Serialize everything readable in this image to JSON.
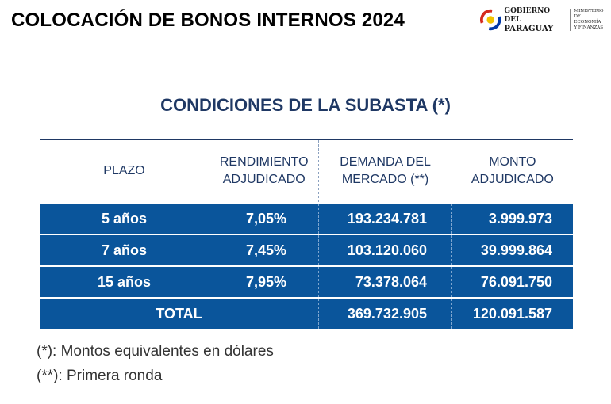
{
  "header": {
    "title": "COLOCACIÓN DE BONOS INTERNOS 2024",
    "logo": {
      "gov_line1": "GOBIERNO DEL",
      "gov_line2": "PARAGUAY",
      "ministry": "MINISTERIO\nDE ECONOMÍA\nY FINANZAS",
      "colors": {
        "red": "#d52b1e",
        "blue": "#0038a8"
      }
    }
  },
  "subtitle": "CONDICIONES DE LA SUBASTA (*)",
  "table": {
    "columns": [
      "PLAZO",
      "RENDIMIENTO ADJUDICADO",
      "DEMANDA DEL MERCADO (**)",
      "MONTO ADJUDICADO"
    ],
    "rows": [
      {
        "plazo": "5 años",
        "rendimiento": "7,05%",
        "demanda": "193.234.781",
        "monto": "3.999.973"
      },
      {
        "plazo": "7 años",
        "rendimiento": "7,45%",
        "demanda": "103.120.060",
        "monto": "39.999.864"
      },
      {
        "plazo": "15 años",
        "rendimiento": "7,95%",
        "demanda": "73.378.064",
        "monto": "76.091.750"
      }
    ],
    "total": {
      "label": "TOTAL",
      "demanda": "369.732.905",
      "monto": "120.091.587"
    },
    "colors": {
      "row_bg": "#0a559b",
      "header_text": "#1f3864"
    }
  },
  "notes": [
    "(*): Montos equivalentes en dólares",
    "(**): Primera ronda"
  ]
}
